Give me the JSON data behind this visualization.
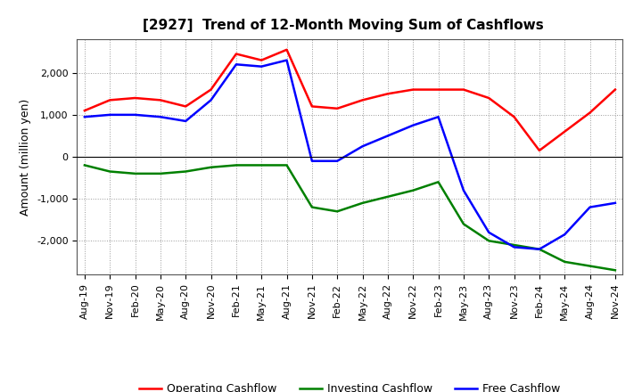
{
  "title": "[2927]  Trend of 12-Month Moving Sum of Cashflows",
  "ylabel": "Amount (million yen)",
  "ylim": [
    -2800,
    2800
  ],
  "yticks": [
    -2000,
    -1000,
    0,
    1000,
    2000
  ],
  "x_labels": [
    "Aug-19",
    "Nov-19",
    "Feb-20",
    "May-20",
    "Aug-20",
    "Nov-20",
    "Feb-21",
    "May-21",
    "Aug-21",
    "Nov-21",
    "Feb-22",
    "May-22",
    "Aug-22",
    "Nov-22",
    "Feb-23",
    "May-23",
    "Aug-23",
    "Nov-23",
    "Feb-24",
    "May-24",
    "Aug-24",
    "Nov-24"
  ],
  "operating": [
    1100,
    1350,
    1400,
    1350,
    1200,
    1600,
    2450,
    2300,
    2550,
    1200,
    1150,
    1350,
    1500,
    1600,
    1600,
    1600,
    1400,
    950,
    150,
    600,
    1050,
    1600
  ],
  "investing": [
    -200,
    -350,
    -400,
    -400,
    -350,
    -250,
    -200,
    -200,
    -200,
    -1200,
    -1300,
    -1100,
    -950,
    -800,
    -600,
    -1600,
    -2000,
    -2100,
    -2200,
    -2500,
    -2600,
    -2700
  ],
  "free": [
    950,
    1000,
    1000,
    950,
    850,
    1350,
    2200,
    2150,
    2300,
    -100,
    -100,
    250,
    500,
    750,
    950,
    -800,
    -1800,
    -2150,
    -2200,
    -1850,
    -1200,
    -1100
  ],
  "operating_color": "#ff0000",
  "investing_color": "#008000",
  "free_color": "#0000ff",
  "background_color": "#ffffff",
  "grid_color": "#999999",
  "title_fontsize": 11,
  "legend_fontsize": 9,
  "axis_fontsize": 8,
  "ylabel_fontsize": 9
}
